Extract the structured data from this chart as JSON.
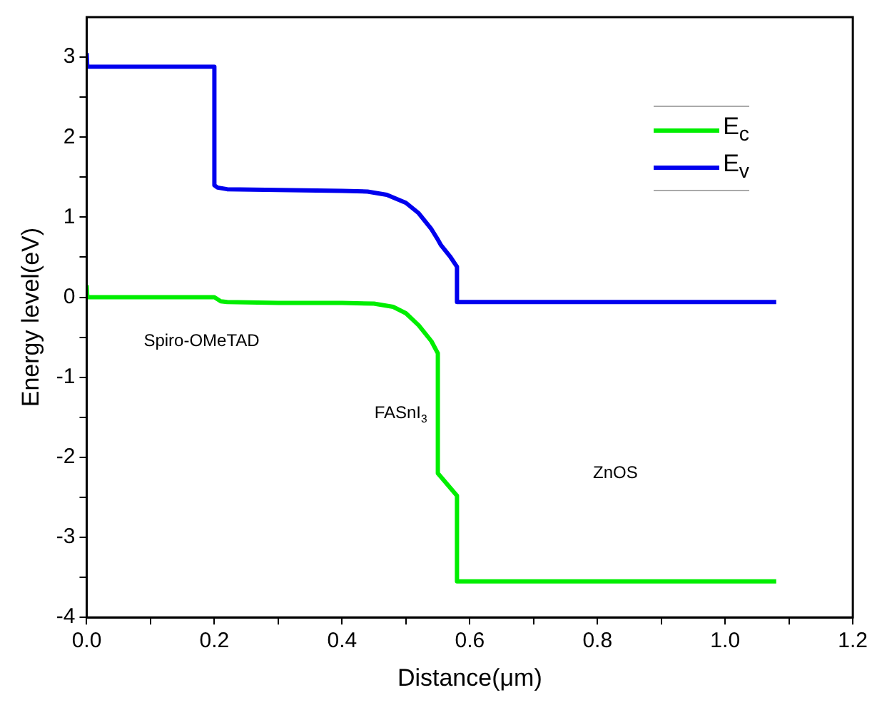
{
  "chart_data": {
    "type": "line",
    "xlabel": "Distance(μm)",
    "ylabel": "Energy level(eV)",
    "xlim": [
      0,
      1.2
    ],
    "ylim": [
      -4,
      3.5
    ],
    "xticks": [
      {
        "value": 0,
        "label": "0.0"
      },
      {
        "value": 0.1,
        "label": null
      },
      {
        "value": 0.2,
        "label": "0.2"
      },
      {
        "value": 0.3,
        "label": null
      },
      {
        "value": 0.4,
        "label": "0.4"
      },
      {
        "value": 0.5,
        "label": null
      },
      {
        "value": 0.6,
        "label": "0.6"
      },
      {
        "value": 0.7,
        "label": null
      },
      {
        "value": 0.8,
        "label": "0.8"
      },
      {
        "value": 0.9,
        "label": null
      },
      {
        "value": 1,
        "label": "1.0"
      },
      {
        "value": 1.1,
        "label": null
      },
      {
        "value": 1.2,
        "label": "1.2"
      }
    ],
    "yticks": [
      -4,
      {
        "value": -3.5,
        "label": null
      },
      -3,
      {
        "value": -2.5,
        "label": null
      },
      -2,
      {
        "value": -1.5,
        "label": null
      },
      -1,
      {
        "value": -0.5,
        "label": null
      },
      0,
      {
        "value": 0.5,
        "label": null
      },
      1,
      {
        "value": 1.5,
        "label": null
      },
      2,
      {
        "value": 2.5,
        "label": null
      },
      3
    ],
    "grid": false,
    "legend": "top right",
    "marker": "none",
    "line_style": "solid",
    "series": [
      {
        "name": "E$_{c}$",
        "color": "#00ee00",
        "x": [
          0,
          0.001,
          0.2,
          0.21,
          0.22,
          0.3,
          0.4,
          0.45,
          0.48,
          0.5,
          0.52,
          0.54,
          0.55,
          0.55,
          0.58,
          0.58,
          0.8,
          1.08
        ],
        "values": [
          0.15,
          0,
          0,
          -0.05,
          -0.06,
          -0.07,
          -0.07,
          -0.08,
          -0.12,
          -0.2,
          -0.35,
          -0.55,
          -0.7,
          -2.2,
          -2.48,
          -3.55,
          -3.55,
          -3.55
        ]
      },
      {
        "name": "E$_{v}$",
        "color": "#0000ee",
        "x": [
          0,
          0.001,
          0.2,
          0.2,
          0.205,
          0.22,
          0.3,
          0.4,
          0.44,
          0.47,
          0.5,
          0.52,
          0.54,
          0.55,
          0.555,
          0.57,
          0.58,
          0.58,
          0.8,
          1.08
        ],
        "values": [
          3.05,
          2.88,
          2.88,
          1.4,
          1.37,
          1.35,
          1.34,
          1.33,
          1.32,
          1.28,
          1.18,
          1.05,
          0.85,
          0.72,
          0.65,
          0.5,
          0.38,
          -0.06,
          -0.06,
          -0.06
        ]
      }
    ],
    "annotations": [
      "Spiro-OMeTAD",
      "FASnI$_{3}$",
      "ZnOS"
    ]
  }
}
